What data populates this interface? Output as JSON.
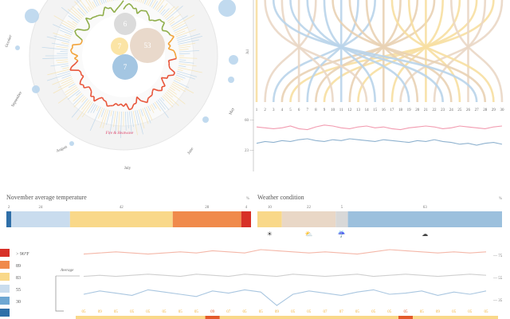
{
  "radial": {
    "month_labels": [
      "October",
      "September",
      "August",
      "July",
      "June",
      "May"
    ],
    "hot_label": "Fire & Heatwave",
    "bubbles": [
      {
        "label": "6",
        "color": "#d9d9d9"
      },
      {
        "label": "53",
        "color": "#e8d7c8"
      },
      {
        "label": "7",
        "color": "#fbe3a0"
      },
      {
        "label": "7",
        "color": "#9fc3e0"
      }
    ]
  },
  "flow": {
    "days": [
      "1",
      "2",
      "3",
      "4",
      "5",
      "6",
      "7",
      "8",
      "9",
      "10",
      "11",
      "12",
      "13",
      "14",
      "15",
      "16",
      "17",
      "18",
      "19",
      "20",
      "21",
      "22",
      "23",
      "24",
      "25",
      "26",
      "27",
      "28",
      "29",
      "30"
    ],
    "side_label": "Jul",
    "hi_values": [
      62,
      61,
      60,
      61,
      63,
      60,
      59,
      62,
      64,
      63,
      61,
      60,
      62,
      63,
      61,
      62,
      60,
      59,
      61,
      62,
      63,
      62,
      60,
      61,
      63,
      62,
      61,
      60,
      62,
      63
    ],
    "lo_values": [
      44,
      46,
      45,
      47,
      46,
      48,
      49,
      47,
      46,
      48,
      47,
      49,
      48,
      47,
      46,
      48,
      47,
      46,
      45,
      47,
      46,
      48,
      46,
      45,
      43,
      44,
      42,
      44,
      45,
      43
    ],
    "y_tick_high": "60 —",
    "y_tick_low": "23 —"
  },
  "temp_bar": {
    "title": "November average temperature",
    "unit": "%",
    "segments": [
      {
        "value": 2,
        "label": "2",
        "color": "#2f6fa8"
      },
      {
        "value": 24,
        "label": "24",
        "color": "#c9dcee"
      },
      {
        "value": 42,
        "label": "42",
        "color": "#f9d889"
      },
      {
        "value": 28,
        "label": "28",
        "color": "#f08a4b"
      },
      {
        "value": 4,
        "label": "4",
        "color": "#d73027"
      }
    ]
  },
  "cond_bar": {
    "title": "Weather condition",
    "unit": "%",
    "segments": [
      {
        "value": 10,
        "label": "10",
        "color": "#f9d889",
        "icon": "sun-icon",
        "glyph": "☀"
      },
      {
        "value": 22,
        "label": "22",
        "color": "#e9d7c6",
        "icon": "cloud-sun-icon",
        "glyph": "⛅"
      },
      {
        "value": 5,
        "label": "5",
        "color": "#d8d8d8",
        "icon": "rain-icon",
        "glyph": "☔"
      },
      {
        "value": 63,
        "label": "63",
        "color": "#9cc0dd",
        "icon": "cloud-icon",
        "glyph": "☁"
      }
    ]
  },
  "legend": {
    "items": [
      {
        "label": "> 96°F",
        "color": "#d73027"
      },
      {
        "label": "89",
        "color": "#f08a4b"
      },
      {
        "label": "83",
        "color": "#f9d889"
      },
      {
        "label": "55",
        "color": "#c9dcee"
      },
      {
        "label": "30",
        "color": "#6ea7d2"
      },
      {
        "label": "",
        "color": "#2f6fa8"
      }
    ]
  },
  "bottom_chart": {
    "average_label": "Average",
    "y_labels": [
      "75",
      "55",
      "35"
    ],
    "high": [
      76,
      77,
      78,
      77,
      76,
      77,
      78,
      77,
      79,
      78,
      77,
      80,
      79,
      78,
      77,
      78,
      77,
      76,
      78,
      80,
      79,
      78,
      77,
      78,
      77,
      78
    ],
    "avg": [
      56,
      57,
      56,
      57,
      58,
      57,
      56,
      58,
      57,
      56,
      58,
      57,
      56,
      58,
      57,
      56,
      57,
      58,
      56,
      57,
      58,
      57,
      56,
      57,
      58,
      57
    ],
    "low": [
      40,
      43,
      41,
      39,
      44,
      42,
      40,
      38,
      43,
      41,
      44,
      42,
      30,
      40,
      43,
      41,
      39,
      42,
      44,
      40,
      41,
      43,
      39,
      42,
      40,
      43
    ],
    "day_labels": [
      "05",
      "09",
      "05",
      "05",
      "05",
      "05",
      "05",
      "05",
      "09",
      "07",
      "05",
      "05",
      "09",
      "05",
      "05",
      "07",
      "07",
      "05",
      "05",
      "05",
      "05",
      "05",
      "09",
      "05",
      "05",
      "05"
    ],
    "day_colors": [
      "#f2b134",
      "#f2b134",
      "#f2b134",
      "#f2b134",
      "#f2b134",
      "#f2b134",
      "#f2b134",
      "#f2b134",
      "#e45a2a",
      "#f2b134",
      "#f2b134",
      "#f2b134",
      "#f2b134",
      "#f2b134",
      "#f2b134",
      "#f2b134",
      "#f2b134",
      "#f2b134",
      "#f2b134",
      "#f2b134",
      "#e45a2a",
      "#f2b134",
      "#f2b134",
      "#f2b134",
      "#f2b134",
      "#f2b134"
    ]
  }
}
